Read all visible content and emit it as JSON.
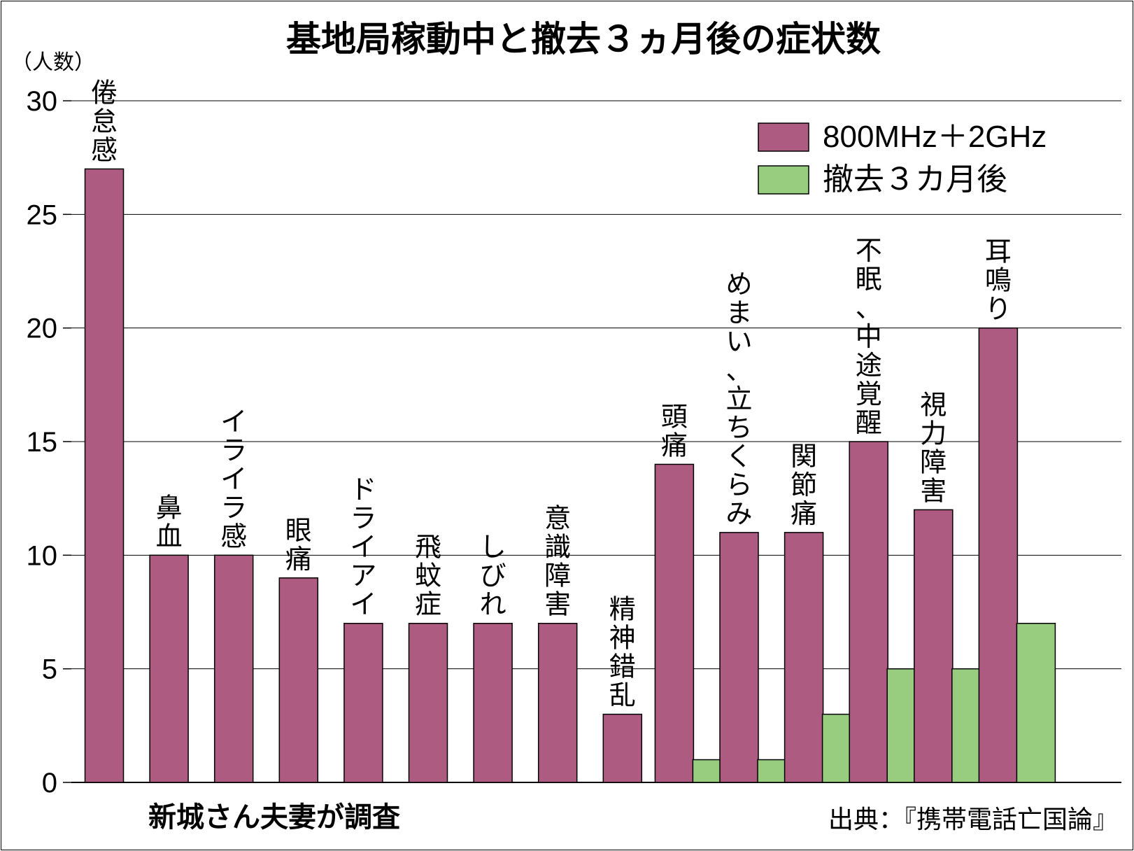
{
  "chart_data": {
    "type": "bar",
    "title": "基地局稼動中と撤去３ヵ月後の症状数",
    "ylabel": "（人数）",
    "ylim": [
      0,
      30
    ],
    "yticks": [
      0,
      5,
      10,
      15,
      20,
      25,
      30
    ],
    "categories": [
      "倦怠感",
      "鼻血",
      "イライラ感",
      "眼痛",
      "ドライアイ",
      "飛蚊症",
      "しびれ",
      "意識障害",
      "精神錯乱",
      "頭痛",
      "めまい、立ちくらみ",
      "関節痛",
      "不眠、中途覚醒",
      "視力障害",
      "耳鳴り"
    ],
    "series": [
      {
        "name": "800MHz＋2GHz",
        "color": "#ad5b81",
        "values": [
          27,
          10,
          10,
          9,
          7,
          7,
          7,
          7,
          3,
          14,
          11,
          11,
          15,
          12,
          20
        ]
      },
      {
        "name": "撤去３カ月後",
        "color": "#98cc7e",
        "values": [
          null,
          null,
          null,
          null,
          null,
          null,
          null,
          null,
          null,
          1,
          1,
          3,
          5,
          5,
          7
        ]
      }
    ],
    "legend": "top-right"
  },
  "footer": {
    "note": "新城さん夫妻が調査",
    "source": "出典：『携帯電話亡国論』"
  }
}
